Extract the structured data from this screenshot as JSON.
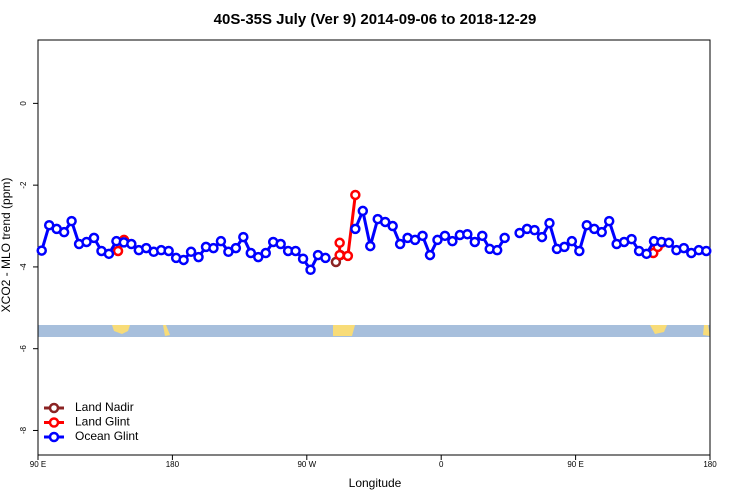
{
  "chart_data": {
    "type": "line",
    "title": "40S-35S July (Ver 9)   2014-09-06 to 2018-12-29",
    "x_label": "Longitude",
    "y_label": "XCO2 - MLO trend (ppm)",
    "xlim": [
      90,
      540
    ],
    "xticks": [
      {
        "value": 90,
        "label": "90 E"
      },
      180,
      {
        "value": 270,
        "label": "90 W"
      },
      {
        "value": 360,
        "label": "0"
      },
      {
        "value": 450,
        "label": "90 E"
      },
      180
    ],
    "ylim": [
      -8.6,
      1.55
    ],
    "yticks": [
      0,
      -2,
      -4,
      -6,
      -8
    ],
    "legend": "bottom-left",
    "series": [
      {
        "name": "Land Nadir",
        "color": "#8b2323",
        "x": [
          289.5,
          292.5
        ],
        "values": [
          -3.88,
          -3.71
        ]
      },
      {
        "name": "Land Glint",
        "color": "#ff0000",
        "x": [
          143.6,
          147.6,
          200,
          292,
          292,
          297.5,
          302.5,
          400,
          502,
          505,
          508
        ],
        "values": [
          -3.61,
          -3.34,
          null,
          -3.41,
          -3.71,
          -3.73,
          -2.24,
          null,
          -3.66,
          -3.51,
          -3.4
        ]
      },
      {
        "name": "Ocean Glint",
        "color": "#0000ff",
        "x": [
          92.5,
          97.5,
          102.5,
          107.5,
          112.5,
          117.5,
          122.5,
          127.5,
          132.5,
          137.5,
          142.5,
          147.5,
          152.5,
          157.5,
          162.5,
          167.5,
          172.5,
          177.5,
          182.5,
          187.5,
          192.5,
          197.5,
          202.5,
          207.5,
          212.5,
          217.5,
          222.5,
          227.5,
          232.5,
          237.5,
          242.5,
          247.5,
          252.5,
          257.5,
          262.5,
          267.5,
          272.5,
          277.5,
          282.5,
          287.5,
          292.5,
          297.5,
          302.5,
          307.5,
          312.5,
          317.5,
          322.5,
          327.5,
          332.5,
          337.5,
          342.5,
          347.5,
          352.5,
          357.5,
          362.5,
          367.5,
          372.5,
          377.5,
          382.5,
          387.5,
          392.5,
          397.5,
          402.5,
          407.5,
          412.5,
          417.5,
          422.5,
          427.5,
          432.5,
          437.5,
          442.5,
          447.5,
          452.5,
          457.5,
          462.5,
          467.5,
          472.5,
          477.5,
          482.5,
          487.5,
          492.5,
          497.5,
          502.5,
          507.5,
          512.5,
          517.5,
          522.5,
          527.5,
          532.5,
          537.5
        ],
        "values": [
          -3.6,
          -2.98,
          -3.07,
          -3.15,
          -2.88,
          -3.44,
          -3.39,
          -3.29,
          -3.61,
          -3.68,
          -3.37,
          -3.4,
          -3.44,
          -3.59,
          -3.54,
          -3.63,
          -3.59,
          -3.61,
          -3.78,
          -3.83,
          -3.63,
          -3.76,
          -3.51,
          -3.54,
          -3.37,
          -3.63,
          -3.54,
          -3.27,
          -3.66,
          -3.76,
          -3.66,
          -3.39,
          -3.44,
          -3.61,
          -3.61,
          -3.8,
          -4.07,
          -3.71,
          -3.78,
          null,
          null,
          null,
          -3.07,
          -2.63,
          -3.49,
          -2.83,
          -2.9,
          -3.0,
          -3.44,
          -3.29,
          -3.34,
          -3.24,
          -3.71,
          -3.34,
          -3.24,
          -3.37,
          -3.22,
          -3.2,
          -3.39,
          -3.24,
          -3.56,
          -3.59,
          -3.29,
          null,
          -3.17,
          -3.07,
          -3.1,
          -3.27,
          -2.93,
          -3.56,
          -3.51,
          -3.37,
          -3.61,
          -2.98,
          -3.07,
          -3.15,
          -2.88,
          -3.44,
          -3.39,
          -3.32,
          -3.61,
          -3.68,
          -3.37,
          -3.39,
          -3.41,
          -3.59,
          -3.54,
          -3.66,
          -3.59,
          -3.61
        ]
      }
    ]
  }
}
